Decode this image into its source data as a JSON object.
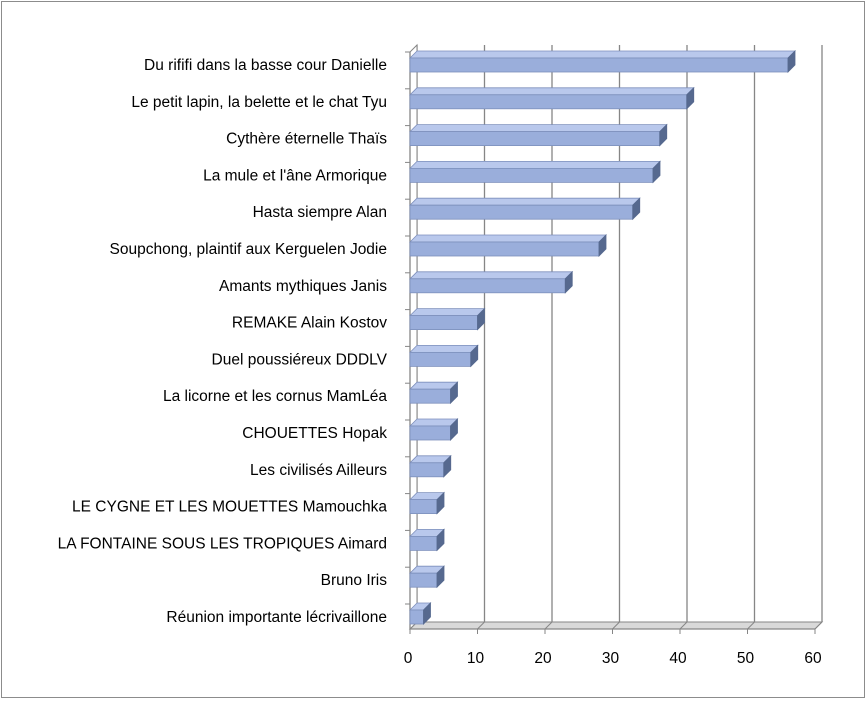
{
  "chart_data": {
    "type": "bar",
    "orientation": "horizontal",
    "style": "3d",
    "categories": [
      "Du rififi dans la basse cour  Danielle",
      "Le petit lapin, la belette et le chat Tyu",
      "Cythère éternelle Thaïs",
      "La mule et l'âne Armorique",
      "Hasta siempre Alan",
      "Soupchong, plaintif aux Kerguelen  Jodie",
      "Amants mythiques Janis",
      "REMAKE Alain Kostov",
      "Duel poussiéreux DDDLV",
      "La licorne et les cornus MamLéa",
      "CHOUETTES  Hopak",
      "Les civilisés Ailleurs",
      "LE CYGNE ET LES MOUETTES  Mamouchka",
      "LA FONTAINE SOUS LES TROPIQUES Aimard",
      "Bruno Iris",
      "Réunion importante lécrivaillone"
    ],
    "values": [
      56,
      41,
      37,
      36,
      33,
      28,
      23,
      10,
      9,
      6,
      6,
      5,
      4,
      4,
      4,
      2
    ],
    "xlim": [
      0,
      60
    ],
    "xticks": [
      "0",
      "10",
      "20",
      "30",
      "40",
      "50",
      "60"
    ],
    "grid": true,
    "colors": {
      "bar_face": "#9aaedb",
      "bar_top": "#b9c8ec",
      "bar_side": "#56698f",
      "bar_edge": "#7d8fbc",
      "grid": "#868686",
      "floor": "#d9d9d9"
    }
  }
}
